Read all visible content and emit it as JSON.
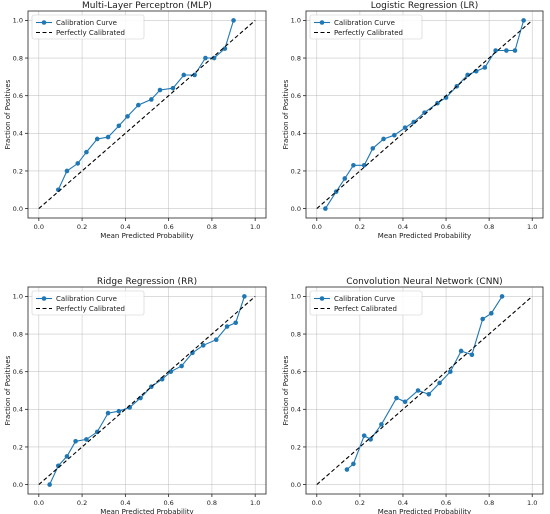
{
  "chart_data": [
    {
      "type": "line",
      "title": "Multi-Layer Perceptron (MLP)",
      "xlabel": "Mean Predicted Probability",
      "ylabel": "Fraction of Positives",
      "xlim": [
        -0.05,
        1.05
      ],
      "ylim": [
        -0.05,
        1.05
      ],
      "xticks": [
        "0.0",
        "0.2",
        "0.4",
        "0.6",
        "0.8",
        "1.0"
      ],
      "yticks": [
        "0.0",
        "0.2",
        "0.4",
        "0.6",
        "0.8",
        "1.0"
      ],
      "grid": true,
      "legend_position": "upper-left",
      "series": [
        {
          "name": "Calibration Curve",
          "style": "line-marker",
          "color": "#1f77b4",
          "x": [
            0.09,
            0.13,
            0.18,
            0.22,
            0.27,
            0.32,
            0.37,
            0.41,
            0.46,
            0.52,
            0.56,
            0.62,
            0.67,
            0.72,
            0.77,
            0.81,
            0.86,
            0.9
          ],
          "y": [
            0.1,
            0.2,
            0.24,
            0.3,
            0.37,
            0.38,
            0.44,
            0.49,
            0.55,
            0.58,
            0.63,
            0.64,
            0.71,
            0.71,
            0.8,
            0.8,
            0.85,
            1.0
          ]
        },
        {
          "name": "Perfectly Calibrated",
          "style": "dashed",
          "color": "#000000",
          "x": [
            0,
            1
          ],
          "y": [
            0,
            1
          ]
        }
      ]
    },
    {
      "type": "line",
      "title": "Logistic Regression (LR)",
      "xlabel": "Mean Predicted Probability",
      "ylabel": "Fraction of Positives",
      "xlim": [
        -0.05,
        1.05
      ],
      "ylim": [
        -0.05,
        1.05
      ],
      "xticks": [
        "0.0",
        "0.2",
        "0.4",
        "0.6",
        "0.8",
        "1.0"
      ],
      "yticks": [
        "0.0",
        "0.2",
        "0.4",
        "0.6",
        "0.8",
        "1.0"
      ],
      "grid": true,
      "legend_position": "upper-left",
      "series": [
        {
          "name": "Calibration Curve",
          "style": "line-marker",
          "color": "#1f77b4",
          "x": [
            0.04,
            0.09,
            0.13,
            0.17,
            0.22,
            0.26,
            0.31,
            0.36,
            0.41,
            0.45,
            0.5,
            0.56,
            0.6,
            0.65,
            0.7,
            0.74,
            0.78,
            0.83,
            0.88,
            0.92,
            0.96
          ],
          "y": [
            0.0,
            0.09,
            0.16,
            0.23,
            0.23,
            0.32,
            0.37,
            0.39,
            0.43,
            0.46,
            0.51,
            0.56,
            0.59,
            0.65,
            0.71,
            0.73,
            0.75,
            0.84,
            0.84,
            0.84,
            1.0
          ]
        },
        {
          "name": "Perfectly Calibrated",
          "style": "dashed",
          "color": "#000000",
          "x": [
            0,
            1
          ],
          "y": [
            0,
            1
          ]
        }
      ]
    },
    {
      "type": "line",
      "title": "Ridge Regression (RR)",
      "xlabel": "Mean Predicted Probability",
      "ylabel": "Fraction of Positives",
      "xlim": [
        -0.05,
        1.05
      ],
      "ylim": [
        -0.05,
        1.05
      ],
      "xticks": [
        "0.0",
        "0.2",
        "0.4",
        "0.6",
        "0.8",
        "1.0"
      ],
      "yticks": [
        "0.0",
        "0.2",
        "0.4",
        "0.6",
        "0.8",
        "1.0"
      ],
      "grid": true,
      "legend_position": "upper-left",
      "series": [
        {
          "name": "Calibration Curve",
          "style": "line-marker",
          "color": "#1f77b4",
          "x": [
            0.05,
            0.09,
            0.13,
            0.17,
            0.22,
            0.27,
            0.32,
            0.37,
            0.42,
            0.47,
            0.52,
            0.57,
            0.61,
            0.66,
            0.71,
            0.76,
            0.82,
            0.87,
            0.91,
            0.95
          ],
          "y": [
            0.0,
            0.1,
            0.15,
            0.23,
            0.24,
            0.28,
            0.38,
            0.39,
            0.41,
            0.46,
            0.52,
            0.56,
            0.6,
            0.63,
            0.7,
            0.74,
            0.77,
            0.84,
            0.86,
            1.0
          ]
        },
        {
          "name": "Perfectly Calibrated",
          "style": "dashed",
          "color": "#000000",
          "x": [
            0,
            1
          ],
          "y": [
            0,
            1
          ]
        }
      ]
    },
    {
      "type": "line",
      "title": "Convolution Neural Network (CNN)",
      "xlabel": "Mean Predicted Probability",
      "ylabel": "Fraction of Positives",
      "xlim": [
        -0.05,
        1.05
      ],
      "ylim": [
        -0.05,
        1.05
      ],
      "xticks": [
        "0.0",
        "0.2",
        "0.4",
        "0.6",
        "0.8",
        "1.0"
      ],
      "yticks": [
        "0.0",
        "0.2",
        "0.4",
        "0.6",
        "0.8",
        "1.0"
      ],
      "grid": true,
      "legend_position": "upper-left",
      "series": [
        {
          "name": "Calibration Curve",
          "style": "line-marker",
          "color": "#1f77b4",
          "x": [
            0.14,
            0.17,
            0.22,
            0.25,
            0.3,
            0.37,
            0.41,
            0.47,
            0.52,
            0.57,
            0.62,
            0.67,
            0.72,
            0.77,
            0.81,
            0.86
          ],
          "y": [
            0.08,
            0.11,
            0.26,
            0.24,
            0.32,
            0.46,
            0.44,
            0.5,
            0.48,
            0.54,
            0.6,
            0.71,
            0.69,
            0.88,
            0.91,
            1.0
          ]
        },
        {
          "name": "Perfect Calibrated",
          "style": "dashed",
          "color": "#000000",
          "x": [
            0,
            1
          ],
          "y": [
            0,
            1
          ]
        }
      ]
    }
  ]
}
